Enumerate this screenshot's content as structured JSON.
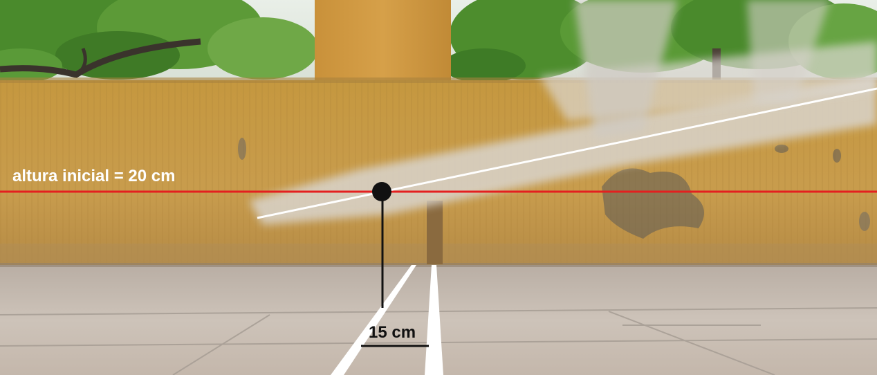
{
  "annotations": {
    "height_label": "altura inicial = 20 cm",
    "distance_label": "15 cm"
  },
  "colors": {
    "reference_line": "#e41f1f",
    "trajectory_line": "#ffffff",
    "marker": "#111111",
    "wall": "#c79a4a",
    "floor": "#c7bdb3",
    "foliage": "#4f8f2f"
  },
  "icons": [
    "pivot-point-marker"
  ]
}
